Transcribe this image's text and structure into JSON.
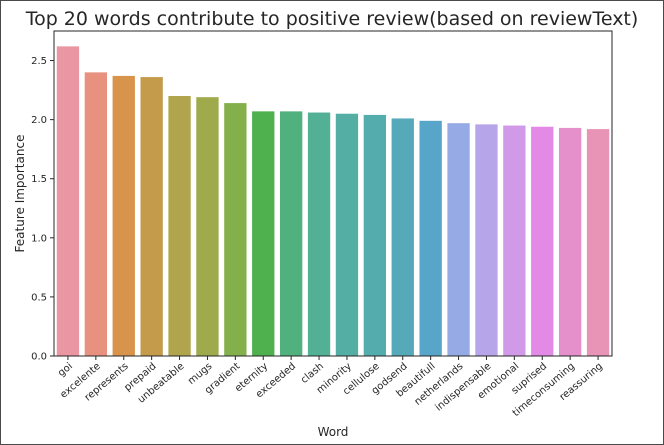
{
  "chart_data": {
    "type": "bar",
    "title": "Top 20 words contribute to positive review(based on reviewText)",
    "xlabel": "Word",
    "ylabel": "Feature Importance",
    "categories": [
      "goi",
      "excelente",
      "represents",
      "prepaid",
      "unbeatable",
      "mugs",
      "gradient",
      "eternity",
      "exceeded",
      "clash",
      "minority",
      "cellulose",
      "godsend",
      "beautifull",
      "netherlands",
      "indispensable",
      "emotional",
      "suprised",
      "timeconsuming",
      "reassuring"
    ],
    "values": [
      2.62,
      2.4,
      2.37,
      2.36,
      2.2,
      2.19,
      2.14,
      2.07,
      2.07,
      2.06,
      2.05,
      2.04,
      2.01,
      1.99,
      1.97,
      1.96,
      1.95,
      1.94,
      1.93,
      1.92
    ],
    "colors": [
      "#ea96a3",
      "#e8917f",
      "#d8944b",
      "#c39b4b",
      "#b0a44c",
      "#9faa4c",
      "#84b04c",
      "#4fb04e",
      "#50b17f",
      "#52b094",
      "#54aea3",
      "#55acad",
      "#55a9b8",
      "#57a5c9",
      "#96aae6",
      "#b6a5e8",
      "#d19ae8",
      "#e28ae6",
      "#e590cb",
      "#e894b6"
    ],
    "yticks": [
      0.0,
      0.5,
      1.0,
      1.5,
      2.0,
      2.5
    ],
    "ylim": [
      0,
      2.75
    ],
    "grid": false,
    "legend": false
  }
}
